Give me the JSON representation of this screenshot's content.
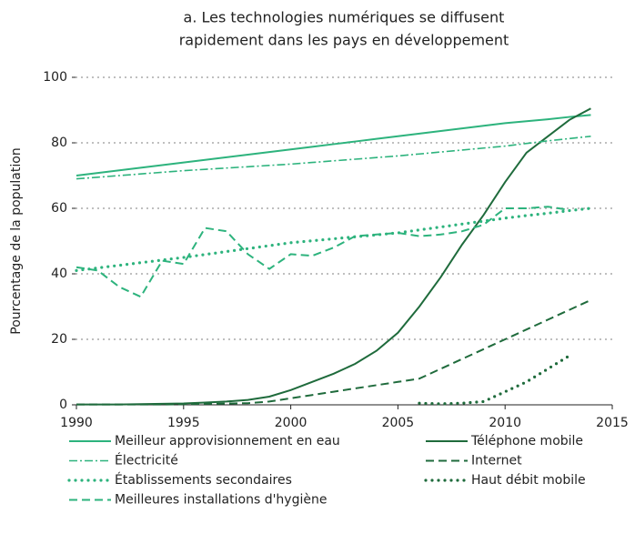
{
  "chart_data": {
    "type": "line",
    "title": [
      "a. Les technologies numériques se diffusent",
      "rapidement dans les pays en développement"
    ],
    "y_label": "Pourcentage de la population",
    "x": [
      1990,
      1991,
      1992,
      1993,
      1994,
      1995,
      1996,
      1997,
      1998,
      1999,
      2000,
      2001,
      2002,
      2003,
      2004,
      2005,
      2006,
      2007,
      2008,
      2009,
      2010,
      2011,
      2012,
      2013,
      2014
    ],
    "xlim": [
      1990,
      2015
    ],
    "xticks": [
      1990,
      1995,
      2000,
      2005,
      2010,
      2015
    ],
    "ylim": [
      0,
      100
    ],
    "yticks": [
      0,
      20,
      40,
      60,
      80,
      100
    ],
    "grid": true,
    "series": [
      {
        "name": "Meilleur approvisionnement en eau",
        "color": "#2db37d",
        "style": "solid",
        "values": [
          70,
          70.8,
          71.6,
          72.4,
          73.2,
          74,
          74.8,
          75.6,
          76.4,
          77.2,
          78,
          78.8,
          79.6,
          80.4,
          81.2,
          82,
          82.8,
          83.6,
          84.4,
          85.2,
          86,
          86.6,
          87.2,
          87.9,
          88.5
        ]
      },
      {
        "name": "Téléphone mobile",
        "color": "#1f6b3c",
        "style": "solid",
        "values": [
          0.1,
          0.1,
          0.1,
          0.2,
          0.3,
          0.4,
          0.7,
          1,
          1.5,
          2.5,
          4.5,
          7,
          9.5,
          12.5,
          16.5,
          22,
          30,
          39,
          49,
          58,
          68,
          77,
          82,
          87,
          90.5
        ]
      },
      {
        "name": "Électricité",
        "color": "#2db37d",
        "style": "dashdot",
        "values": [
          69,
          69.5,
          70,
          70.5,
          71,
          71.5,
          71.9,
          72.3,
          72.7,
          73.1,
          73.5,
          74,
          74.5,
          75,
          75.5,
          76,
          76.6,
          77.2,
          77.8,
          78.4,
          79,
          79.8,
          80.6,
          81.3,
          82
        ]
      },
      {
        "name": "Internet",
        "color": "#1f6b3c",
        "style": "dashed",
        "values": [
          0.1,
          0.1,
          0.1,
          0.1,
          0.1,
          0.2,
          0.3,
          0.4,
          0.5,
          1,
          2,
          3,
          4,
          5,
          6,
          7,
          8,
          11,
          14,
          17,
          20,
          23,
          26,
          29,
          32
        ]
      },
      {
        "name": "Établissements secondaires",
        "color": "#2db37d",
        "style": "dotted",
        "values": [
          41,
          41.8,
          42.6,
          43.4,
          44.2,
          45,
          45.9,
          46.8,
          47.7,
          48.6,
          49.5,
          50.1,
          50.7,
          51.3,
          51.9,
          52.5,
          53.4,
          54.3,
          55.2,
          56.1,
          57,
          57.8,
          58.5,
          59.3,
          60
        ]
      },
      {
        "name": "Haut débit mobile",
        "color": "#1f6b3c",
        "style": "dotted",
        "values": [
          null,
          null,
          null,
          null,
          null,
          null,
          null,
          null,
          null,
          null,
          null,
          null,
          null,
          null,
          null,
          null,
          0.5,
          0.3,
          0.5,
          1,
          4,
          7,
          11,
          15,
          null
        ]
      },
      {
        "name": "Meilleures installations d'hygiène",
        "color": "#2db37d",
        "style": "dashed",
        "values": [
          42,
          41,
          36,
          33,
          44,
          43,
          54,
          53,
          46,
          41.5,
          46,
          45.5,
          48,
          51.5,
          52,
          52.5,
          51.5,
          52,
          53,
          55,
          60,
          60,
          60.5,
          59.5,
          null
        ]
      }
    ]
  }
}
